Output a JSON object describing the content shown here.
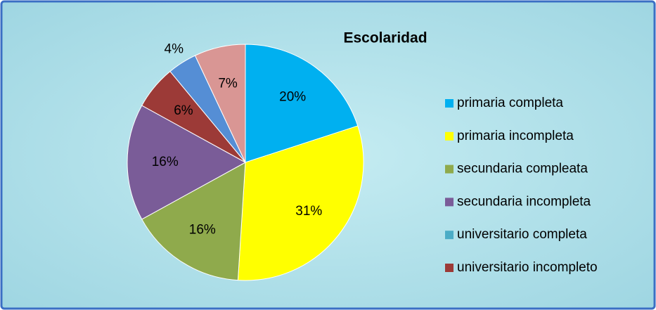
{
  "chart_data": {
    "type": "pie",
    "title": "Escolaridad",
    "categories": [
      "primaria completa",
      "primaria incompleta",
      "secundaria compleata",
      "secundaria incompleta",
      "universitario completa",
      "universitario incompleto",
      null,
      null
    ],
    "values": [
      20,
      31,
      16,
      16,
      0,
      6,
      4,
      7
    ],
    "value_labels": [
      "20%",
      "31%",
      "16%",
      "16%",
      null,
      "6%",
      "4%",
      "7%"
    ],
    "colors": [
      "#00b0f0",
      "#ffff00",
      "#8faa4c",
      "#7a5c98",
      "#4bacc6",
      "#9c3a37",
      "#558ed5",
      "#d99694"
    ],
    "legend": "right"
  }
}
